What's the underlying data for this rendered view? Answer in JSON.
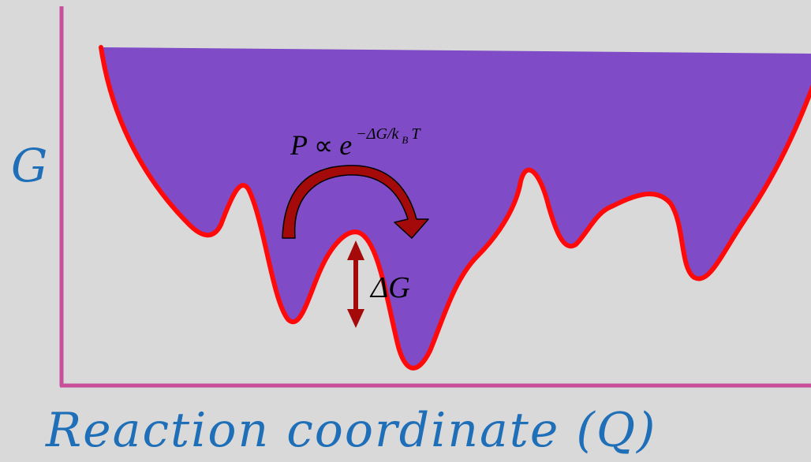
{
  "diagram": {
    "y_axis_label": "G",
    "x_axis_label": "Reaction coordinate (Q)",
    "formula": {
      "lhs": "P",
      "proportional": "∝",
      "base": "e",
      "exponent_prefix": "−ΔG/k",
      "exponent_subscript": "B",
      "exponent_suffix": "T"
    },
    "barrier_label": "ΔG"
  },
  "colors": {
    "background": "#d9d9d9",
    "axis": "#c8509a",
    "landscape_fill": "#7f4bc6",
    "landscape_stroke": "#ff0a0a",
    "arrow_dark_red": "#a50a0a",
    "axis_label_text": "#1f6fb8",
    "formula_text": "#000000"
  }
}
